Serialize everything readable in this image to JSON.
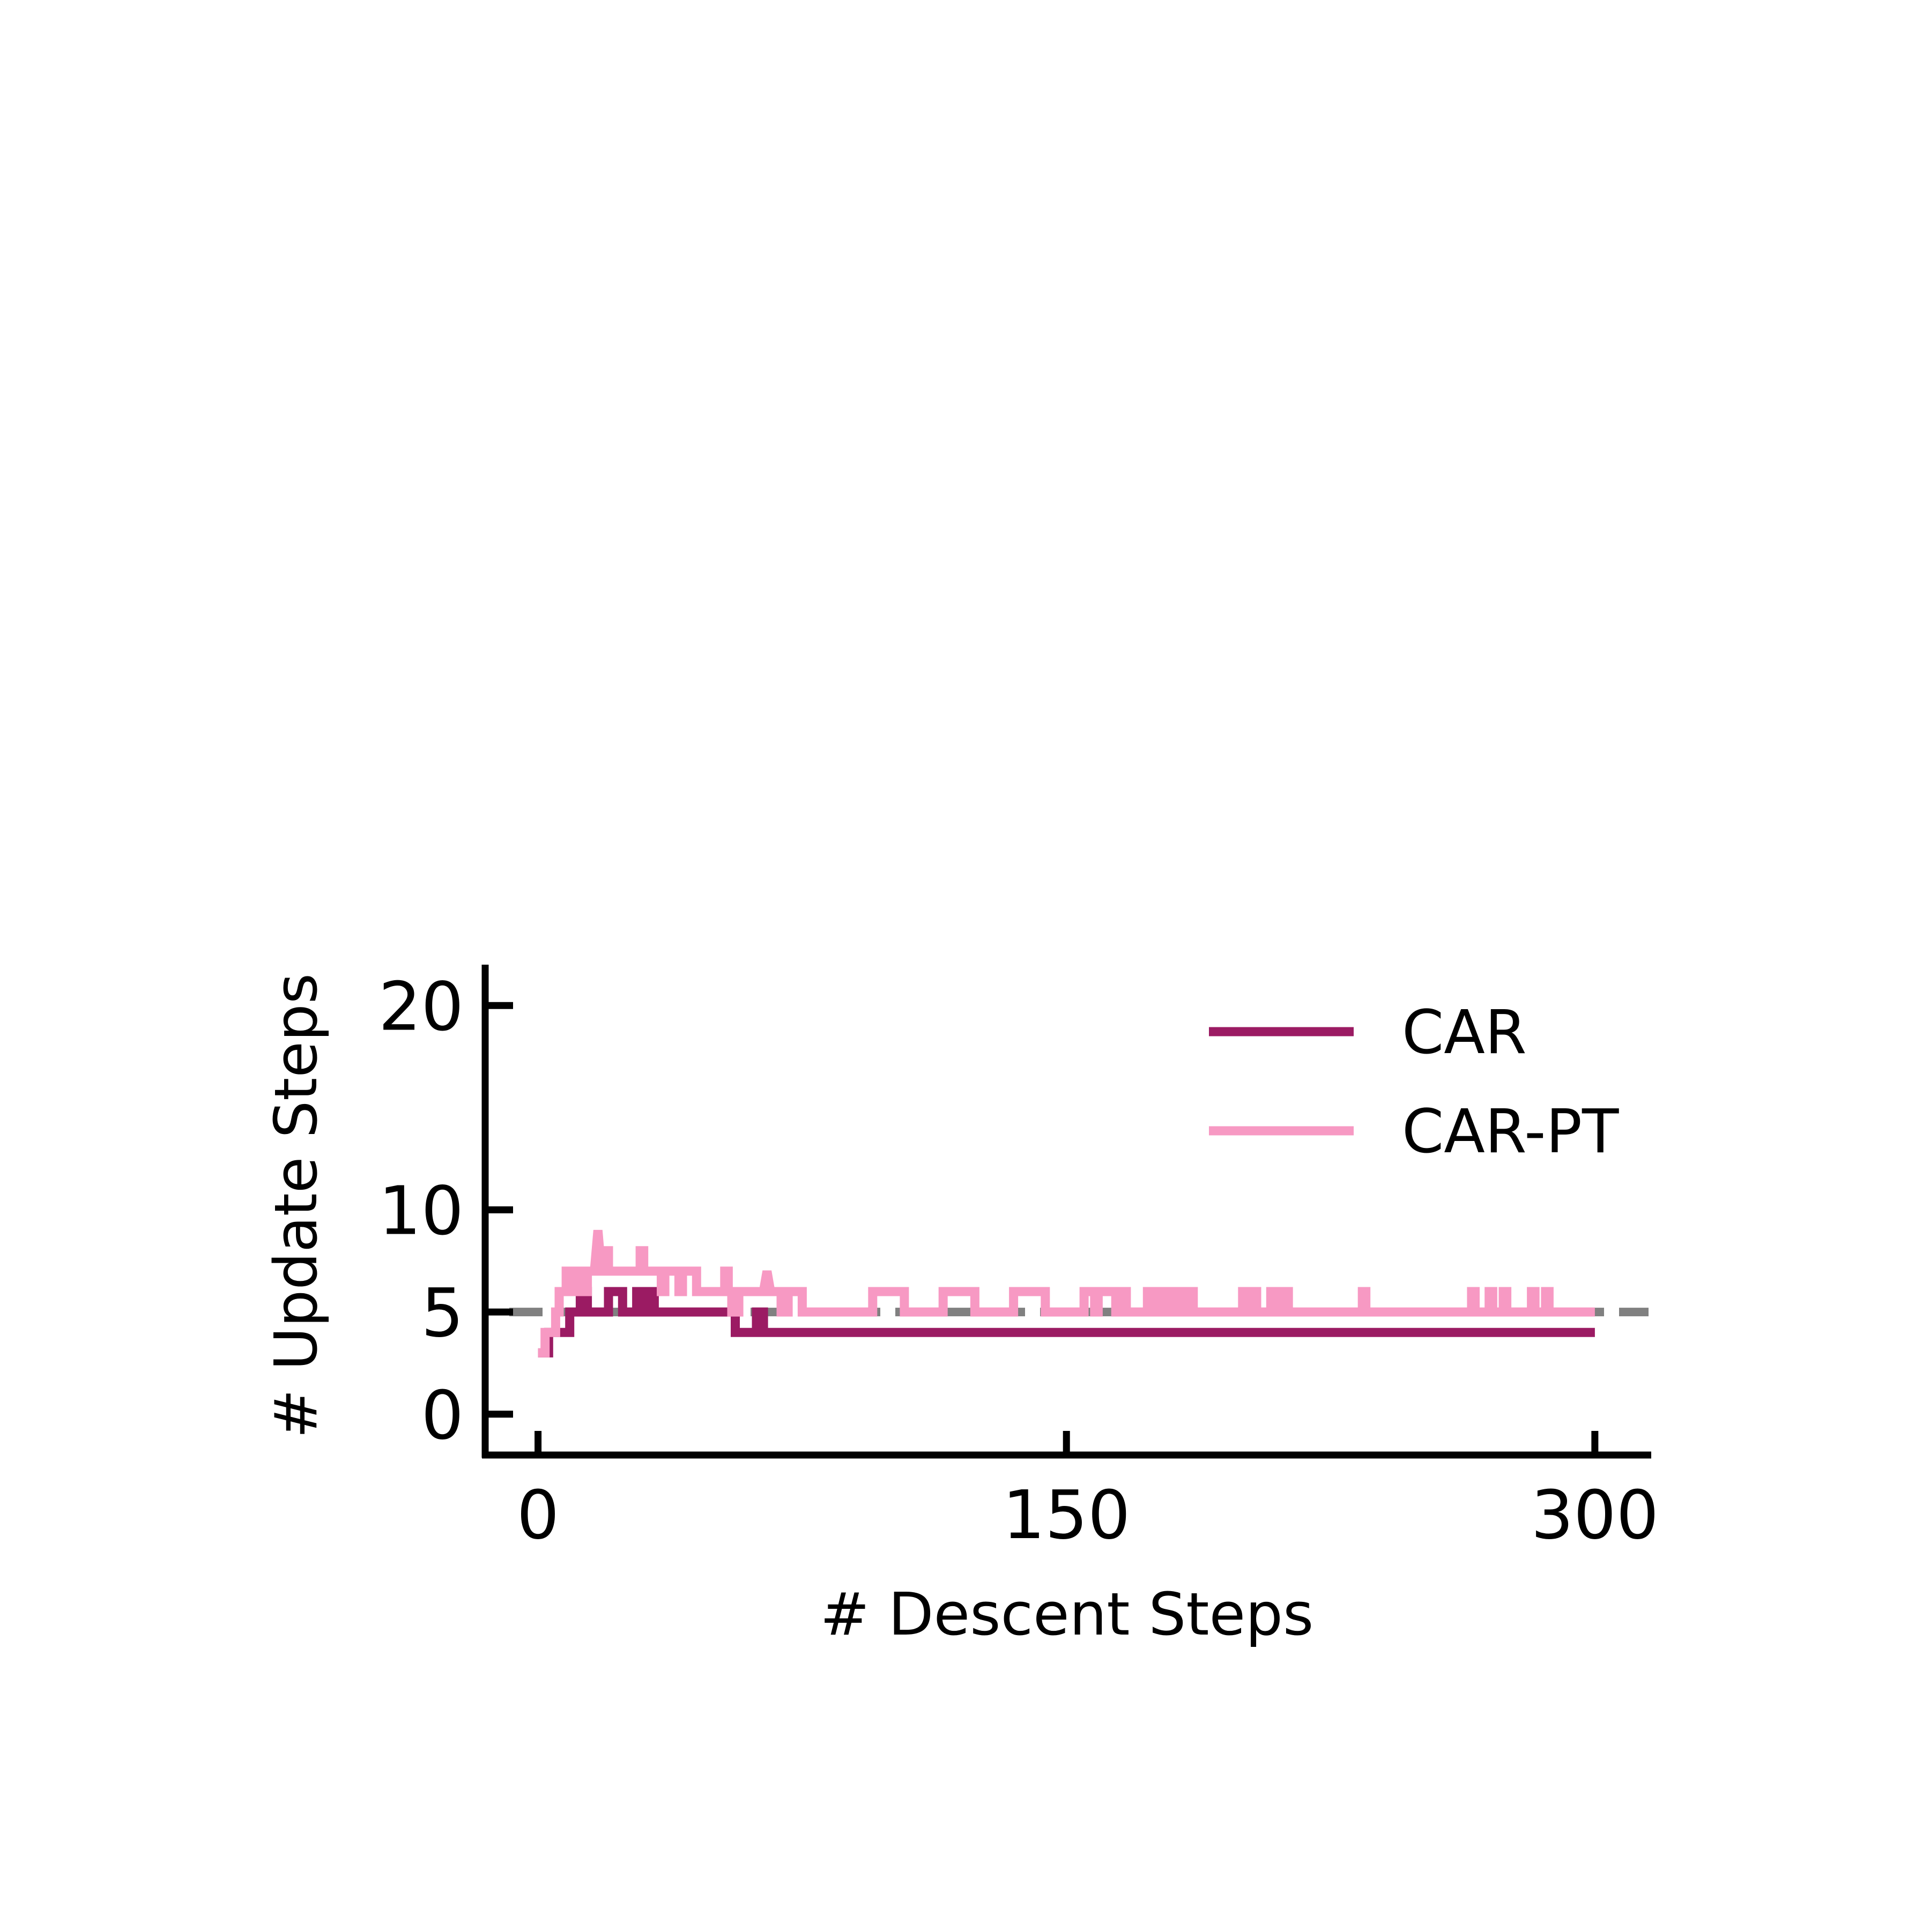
{
  "chart_data": {
    "type": "line",
    "title": "",
    "xlabel": "# Descent Steps",
    "ylabel": "# Update Steps",
    "xlim": [
      -15,
      316
    ],
    "ylim": [
      -2,
      22
    ],
    "xticks": [
      0,
      150,
      300
    ],
    "yticks": [
      0,
      5,
      10,
      20
    ],
    "grid": false,
    "legend_position": "top-right",
    "reference_line": {
      "y": 5,
      "style": "dashed",
      "color": "#808080"
    },
    "series": [
      {
        "name": "CAR",
        "color": "#9b1b63",
        "points": [
          [
            0,
            3
          ],
          [
            3,
            3
          ],
          [
            3,
            4
          ],
          [
            9,
            4
          ],
          [
            9,
            5
          ],
          [
            12,
            5
          ],
          [
            12,
            6
          ],
          [
            14,
            6
          ],
          [
            14,
            5
          ],
          [
            20,
            5
          ],
          [
            20,
            6
          ],
          [
            24,
            6
          ],
          [
            24,
            5
          ],
          [
            28,
            5
          ],
          [
            28,
            6
          ],
          [
            29,
            6
          ],
          [
            29,
            5
          ],
          [
            31,
            5
          ],
          [
            31,
            6
          ],
          [
            33,
            6
          ],
          [
            33,
            5
          ],
          [
            56,
            5
          ],
          [
            56,
            4
          ],
          [
            62,
            4
          ],
          [
            62,
            5
          ],
          [
            64,
            5
          ],
          [
            64,
            4
          ],
          [
            300,
            4
          ]
        ]
      },
      {
        "name": "CAR-PT",
        "color": "#f799c3",
        "points": [
          [
            0,
            3
          ],
          [
            2,
            3
          ],
          [
            2,
            4
          ],
          [
            5,
            4
          ],
          [
            5,
            5
          ],
          [
            6,
            5
          ],
          [
            6,
            6
          ],
          [
            8,
            6
          ],
          [
            8,
            7
          ],
          [
            10,
            7
          ],
          [
            10,
            6
          ],
          [
            11,
            6
          ],
          [
            11,
            7
          ],
          [
            13,
            7
          ],
          [
            13,
            6
          ],
          [
            14,
            6
          ],
          [
            14,
            7
          ],
          [
            16,
            7
          ],
          [
            17,
            9
          ],
          [
            18,
            7
          ],
          [
            19,
            7
          ],
          [
            19,
            8
          ],
          [
            20,
            8
          ],
          [
            20,
            7
          ],
          [
            29,
            7
          ],
          [
            29,
            8
          ],
          [
            30,
            8
          ],
          [
            30,
            7
          ],
          [
            35,
            7
          ],
          [
            35,
            6
          ],
          [
            36,
            6
          ],
          [
            36,
            7
          ],
          [
            40,
            7
          ],
          [
            40,
            6
          ],
          [
            41,
            6
          ],
          [
            41,
            7
          ],
          [
            45,
            7
          ],
          [
            45,
            6
          ],
          [
            53,
            6
          ],
          [
            53,
            7
          ],
          [
            54,
            7
          ],
          [
            54,
            6
          ],
          [
            55,
            6
          ],
          [
            55,
            5
          ],
          [
            57,
            5
          ],
          [
            57,
            6
          ],
          [
            64,
            6
          ],
          [
            65,
            7
          ],
          [
            66,
            6
          ],
          [
            69,
            6
          ],
          [
            69,
            5
          ],
          [
            71,
            5
          ],
          [
            71,
            6
          ],
          [
            75,
            6
          ],
          [
            75,
            5
          ],
          [
            95,
            5
          ],
          [
            95,
            6
          ],
          [
            104,
            6
          ],
          [
            104,
            5
          ],
          [
            115,
            5
          ],
          [
            115,
            6
          ],
          [
            124,
            6
          ],
          [
            124,
            5
          ],
          [
            135,
            5
          ],
          [
            135,
            6
          ],
          [
            144,
            6
          ],
          [
            144,
            5
          ],
          [
            155,
            5
          ],
          [
            155,
            6
          ],
          [
            158,
            6
          ],
          [
            158,
            5
          ],
          [
            159,
            5
          ],
          [
            159,
            6
          ],
          [
            164,
            6
          ],
          [
            164,
            5
          ],
          [
            166,
            5
          ],
          [
            166,
            6
          ],
          [
            167,
            6
          ],
          [
            167,
            5
          ],
          [
            173,
            5
          ],
          [
            173,
            6
          ],
          [
            174,
            6
          ],
          [
            174,
            5
          ],
          [
            175,
            5
          ],
          [
            175,
            6
          ],
          [
            177,
            6
          ],
          [
            177,
            5
          ],
          [
            178,
            5
          ],
          [
            178,
            6
          ],
          [
            180,
            6
          ],
          [
            180,
            5
          ],
          [
            181,
            5
          ],
          [
            181,
            6
          ],
          [
            183,
            6
          ],
          [
            183,
            5
          ],
          [
            184,
            5
          ],
          [
            184,
            6
          ],
          [
            186,
            6
          ],
          [
            186,
            5
          ],
          [
            200,
            5
          ],
          [
            200,
            6
          ],
          [
            201,
            6
          ],
          [
            201,
            5
          ],
          [
            203,
            5
          ],
          [
            203,
            6
          ],
          [
            204,
            6
          ],
          [
            204,
            5
          ],
          [
            208,
            5
          ],
          [
            208,
            6
          ],
          [
            209,
            6
          ],
          [
            209,
            5
          ],
          [
            211,
            5
          ],
          [
            211,
            6
          ],
          [
            213,
            6
          ],
          [
            213,
            5
          ],
          [
            234,
            5
          ],
          [
            234,
            6
          ],
          [
            235,
            6
          ],
          [
            235,
            5
          ],
          [
            265,
            5
          ],
          [
            265,
            6
          ],
          [
            266,
            6
          ],
          [
            266,
            5
          ],
          [
            270,
            5
          ],
          [
            270,
            6
          ],
          [
            271,
            6
          ],
          [
            271,
            5
          ],
          [
            274,
            5
          ],
          [
            274,
            6
          ],
          [
            275,
            6
          ],
          [
            275,
            5
          ],
          [
            282,
            5
          ],
          [
            282,
            6
          ],
          [
            283,
            6
          ],
          [
            283,
            5
          ],
          [
            286,
            5
          ],
          [
            286,
            6
          ],
          [
            287,
            6
          ],
          [
            287,
            5
          ],
          [
            300,
            5
          ]
        ]
      }
    ]
  }
}
